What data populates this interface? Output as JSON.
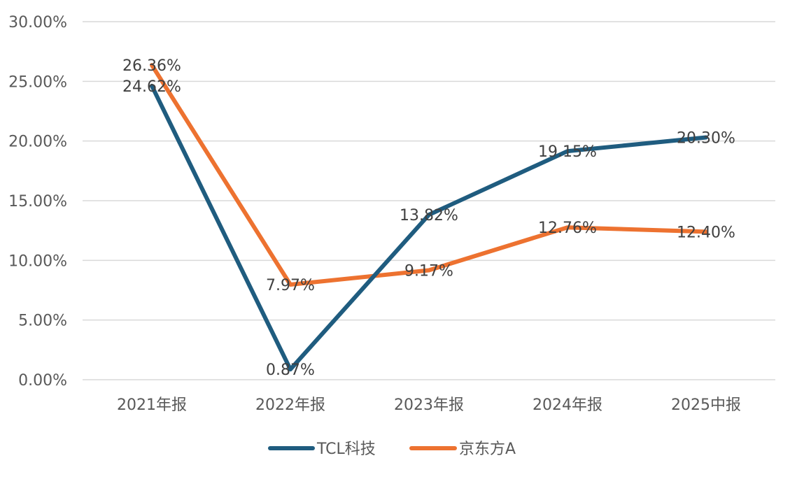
{
  "chart_data": {
    "type": "line",
    "title": "",
    "xlabel": "",
    "ylabel": "",
    "categories": [
      "2021年报",
      "2022年报",
      "2023年报",
      "2024年报",
      "2025中报"
    ],
    "ylim": [
      0,
      30
    ],
    "ytick_values": [
      0,
      5,
      10,
      15,
      20,
      25,
      30
    ],
    "ytick_labels": [
      "0.00%",
      "5.00%",
      "10.00%",
      "15.00%",
      "20.00%",
      "25.00%",
      "30.00%"
    ],
    "grid": true,
    "legend_position": "bottom",
    "series": [
      {
        "name": "TCL科技",
        "color": "#1f5c7f",
        "values": [
          24.62,
          0.87,
          13.82,
          19.15,
          20.3
        ],
        "labels": [
          "24.62%",
          "0.87%",
          "13.82%",
          "19.15%",
          "20.30%"
        ]
      },
      {
        "name": "京东方A",
        "color": "#ed7230",
        "values": [
          26.36,
          7.97,
          9.17,
          12.76,
          12.4
        ],
        "labels": [
          "26.36%",
          "7.97%",
          "9.17%",
          "12.76%",
          "12.40%"
        ]
      }
    ]
  }
}
